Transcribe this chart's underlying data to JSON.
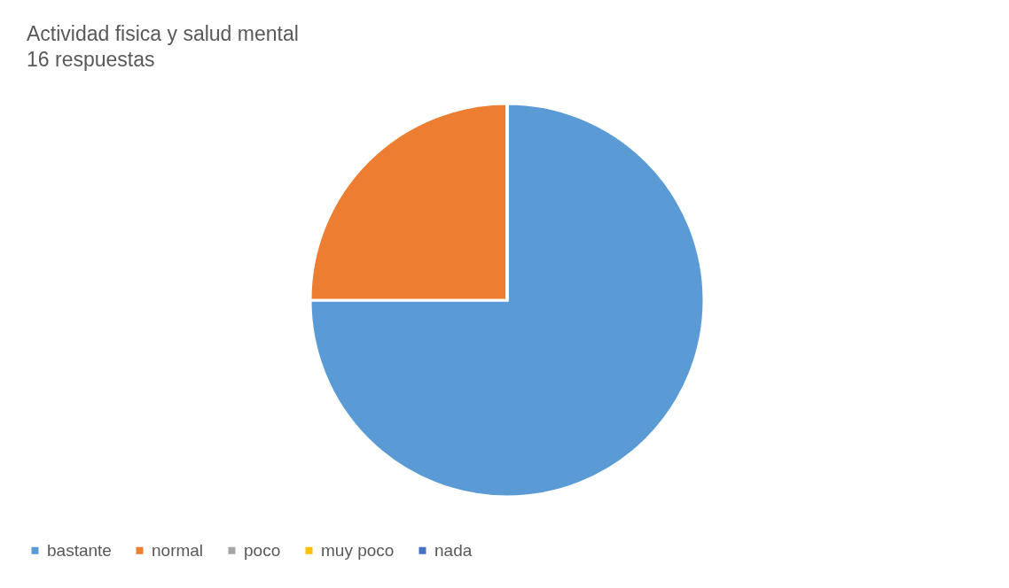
{
  "chart_data": {
    "type": "pie",
    "title": "Actividad fisica y salud mental",
    "subtitle": "16 respuestas",
    "categories": [
      "bastante",
      "normal",
      "poco",
      "muy poco",
      "nada"
    ],
    "values": [
      75,
      25,
      0,
      0,
      0
    ],
    "colors": [
      "#5b9bd5",
      "#ed7d31",
      "#a5a5a5",
      "#ffc000",
      "#4472c4"
    ],
    "legend": "bottom"
  }
}
